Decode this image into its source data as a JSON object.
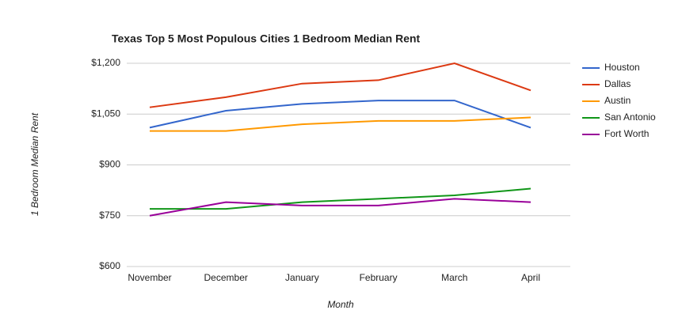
{
  "chart_data": {
    "type": "line",
    "title": "Texas Top 5 Most Populous Cities 1 Bedroom Median Rent",
    "x_label": "Month",
    "y_label": "1 Bedroom Median Rent",
    "categories": [
      "November",
      "December",
      "January",
      "February",
      "March",
      "April"
    ],
    "series": [
      {
        "name": "Houston",
        "color": "#3366cc",
        "values": [
          1010,
          1060,
          1080,
          1090,
          1090,
          1010
        ]
      },
      {
        "name": "Dallas",
        "color": "#dc3912",
        "values": [
          1070,
          1100,
          1140,
          1150,
          1200,
          1120
        ]
      },
      {
        "name": "Austin",
        "color": "#ff9900",
        "values": [
          1000,
          1000,
          1020,
          1030,
          1030,
          1040
        ]
      },
      {
        "name": "San Antonio",
        "color": "#109618",
        "values": [
          770,
          770,
          790,
          800,
          810,
          830
        ]
      },
      {
        "name": "Fort Worth",
        "color": "#990099",
        "values": [
          750,
          790,
          780,
          780,
          800,
          790
        ]
      }
    ],
    "ylim": [
      600,
      1200
    ],
    "yticks": [
      {
        "value": 600,
        "label": "$600"
      },
      {
        "value": 750,
        "label": "$750"
      },
      {
        "value": 900,
        "label": "$900"
      },
      {
        "value": 1050,
        "label": "$1,050"
      },
      {
        "value": 1200,
        "label": "$1,200"
      }
    ],
    "grid": true,
    "legend": "right"
  }
}
